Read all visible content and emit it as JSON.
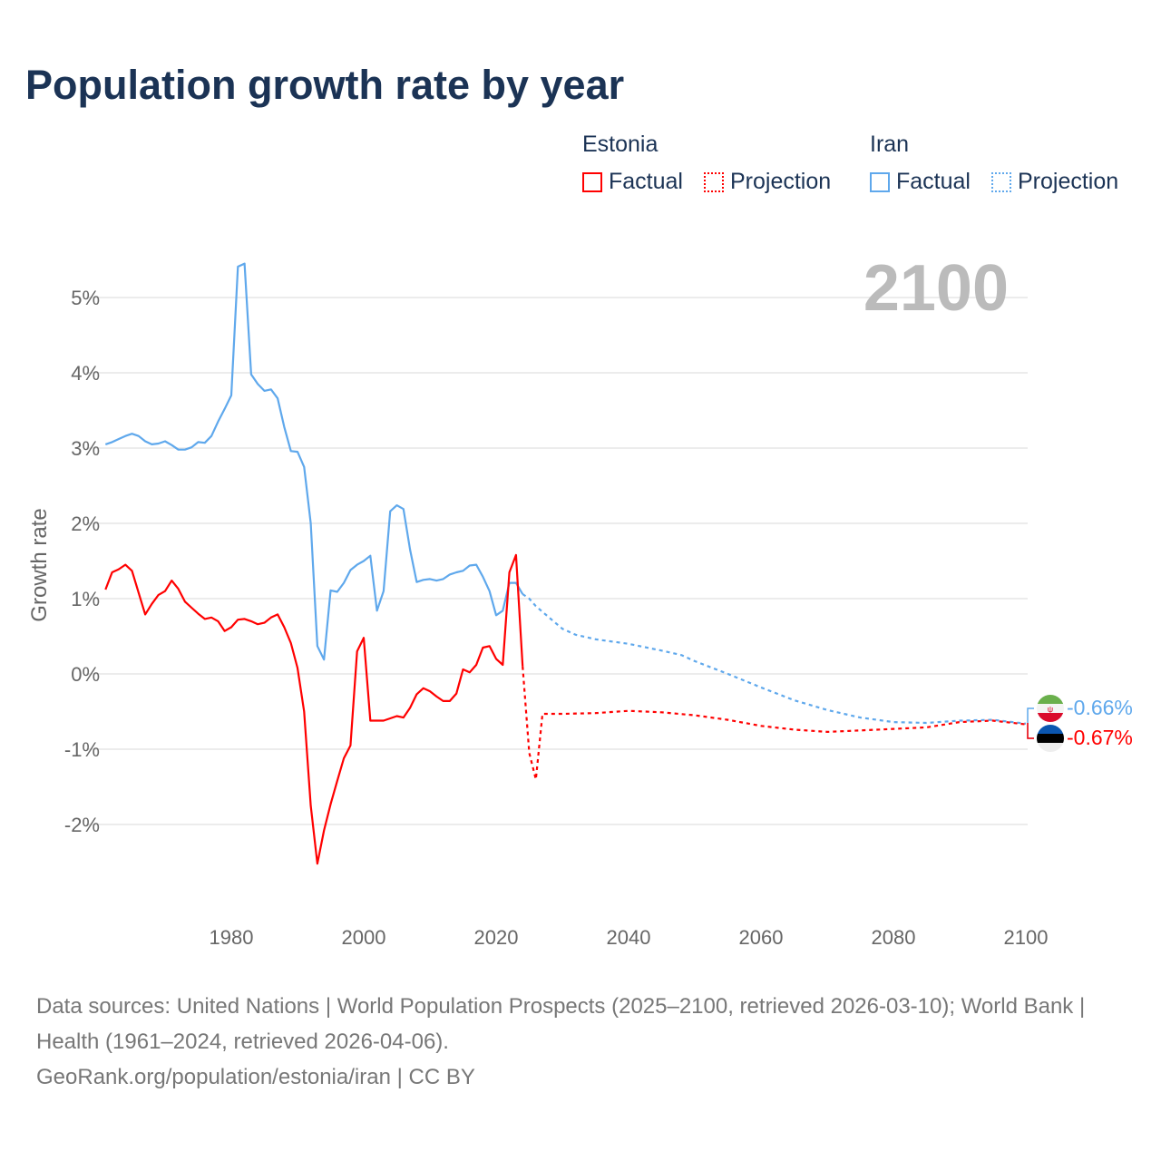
{
  "title": "Population growth rate by year",
  "legend": {
    "groups": [
      {
        "name": "Estonia",
        "factual": "Factual",
        "projection": "Projection",
        "color": "#ff0000"
      },
      {
        "name": "Iran",
        "factual": "Factual",
        "projection": "Projection",
        "color": "#5fa8ec"
      }
    ]
  },
  "year_label": "2100",
  "end_labels": {
    "iran": "-0.66%",
    "estonia": "-0.67%"
  },
  "sources": {
    "line1": "Data sources: United Nations | World Population Prospects (2025–2100, retrieved 2026-03-10); World Bank | Health (1961–2024, retrieved 2026-04-06).",
    "line2": "GeoRank.org/population/estonia/iran | CC BY"
  },
  "chart_data": {
    "type": "line",
    "title": "Population growth rate by year",
    "xlabel": "",
    "ylabel": "Growth rate",
    "xlim": [
      1961,
      2100
    ],
    "ylim": [
      -3,
      5.8
    ],
    "xticks": [
      1980,
      2000,
      2020,
      2040,
      2060,
      2080,
      2100
    ],
    "xtick_labels": [
      "1980",
      "2000",
      "2020",
      "2040",
      "2060",
      "2080",
      "2100"
    ],
    "yticks": [
      -2,
      -1,
      0,
      1,
      2,
      3,
      4,
      5
    ],
    "ytick_labels": [
      "-2%",
      "-1%",
      "0%",
      "1%",
      "2%",
      "3%",
      "4%",
      "5%"
    ],
    "grid": true,
    "legend_position": "top-right",
    "series": [
      {
        "name": "Iran Factual",
        "color": "#5fa8ec",
        "style": "solid",
        "x": [
          1961,
          1962,
          1963,
          1964,
          1965,
          1966,
          1967,
          1968,
          1969,
          1970,
          1971,
          1972,
          1973,
          1974,
          1975,
          1976,
          1977,
          1978,
          1979,
          1980,
          1981,
          1982,
          1983,
          1984,
          1985,
          1986,
          1987,
          1988,
          1989,
          1990,
          1991,
          1992,
          1993,
          1994,
          1995,
          1996,
          1997,
          1998,
          1999,
          2000,
          2001,
          2002,
          2003,
          2004,
          2005,
          2006,
          2007,
          2008,
          2009,
          2010,
          2011,
          2012,
          2013,
          2014,
          2015,
          2016,
          2017,
          2018,
          2019,
          2020,
          2021,
          2022,
          2023,
          2024
        ],
        "y": [
          3.05,
          3.08,
          3.12,
          3.16,
          3.19,
          3.16,
          3.09,
          3.05,
          3.06,
          3.09,
          3.04,
          2.98,
          2.98,
          3.01,
          3.08,
          3.07,
          3.16,
          3.35,
          3.52,
          3.7,
          5.41,
          5.45,
          3.98,
          3.85,
          3.76,
          3.78,
          3.66,
          3.28,
          2.96,
          2.95,
          2.75,
          2.0,
          0.37,
          0.19,
          1.11,
          1.09,
          1.21,
          1.38,
          1.45,
          1.5,
          1.57,
          0.84,
          1.1,
          2.16,
          2.24,
          2.19,
          1.65,
          1.22,
          1.25,
          1.26,
          1.24,
          1.26,
          1.32,
          1.35,
          1.37,
          1.44,
          1.45,
          1.29,
          1.1,
          0.78,
          0.84,
          1.21,
          1.21,
          1.06
        ]
      },
      {
        "name": "Iran Projection",
        "color": "#5fa8ec",
        "style": "dotted",
        "x": [
          2024,
          2025,
          2026,
          2028,
          2030,
          2032,
          2035,
          2040,
          2045,
          2048,
          2050,
          2055,
          2060,
          2065,
          2070,
          2075,
          2080,
          2085,
          2090,
          2095,
          2100
        ],
        "y": [
          1.06,
          1.0,
          0.9,
          0.75,
          0.6,
          0.52,
          0.46,
          0.4,
          0.31,
          0.25,
          0.17,
          0.0,
          -0.18,
          -0.35,
          -0.48,
          -0.58,
          -0.64,
          -0.65,
          -0.62,
          -0.61,
          -0.66
        ]
      },
      {
        "name": "Estonia Factual",
        "color": "#ff0000",
        "style": "solid",
        "x": [
          1961,
          1962,
          1963,
          1964,
          1965,
          1966,
          1967,
          1968,
          1969,
          1970,
          1971,
          1972,
          1973,
          1974,
          1975,
          1976,
          1977,
          1978,
          1979,
          1980,
          1981,
          1982,
          1983,
          1984,
          1985,
          1986,
          1987,
          1988,
          1989,
          1990,
          1991,
          1992,
          1993,
          1994,
          1995,
          1996,
          1997,
          1998,
          1999,
          2000,
          2001,
          2002,
          2003,
          2004,
          2005,
          2006,
          2007,
          2008,
          2009,
          2010,
          2011,
          2012,
          2013,
          2014,
          2015,
          2016,
          2017,
          2018,
          2019,
          2020,
          2021,
          2022,
          2023,
          2024
        ],
        "y": [
          1.12,
          1.35,
          1.39,
          1.45,
          1.37,
          1.08,
          0.79,
          0.93,
          1.05,
          1.1,
          1.24,
          1.13,
          0.96,
          0.88,
          0.8,
          0.73,
          0.75,
          0.7,
          0.57,
          0.62,
          0.72,
          0.73,
          0.7,
          0.66,
          0.68,
          0.75,
          0.79,
          0.62,
          0.41,
          0.08,
          -0.5,
          -1.75,
          -2.52,
          -2.08,
          -1.73,
          -1.42,
          -1.12,
          -0.95,
          0.3,
          0.48,
          -0.62,
          -0.62,
          -0.62,
          -0.59,
          -0.56,
          -0.58,
          -0.45,
          -0.27,
          -0.19,
          -0.23,
          -0.3,
          -0.36,
          -0.36,
          -0.26,
          0.06,
          0.02,
          0.12,
          0.35,
          0.37,
          0.2,
          0.12,
          1.35,
          1.58,
          0.1
        ]
      },
      {
        "name": "Estonia Projection",
        "color": "#ff0000",
        "style": "dotted",
        "x": [
          2024,
          2025,
          2026,
          2027,
          2030,
          2035,
          2040,
          2045,
          2050,
          2055,
          2060,
          2065,
          2070,
          2075,
          2080,
          2085,
          2090,
          2095,
          2100
        ],
        "y": [
          0.1,
          -1.05,
          -1.4,
          -0.53,
          -0.53,
          -0.52,
          -0.49,
          -0.51,
          -0.55,
          -0.61,
          -0.69,
          -0.74,
          -0.77,
          -0.75,
          -0.73,
          -0.71,
          -0.64,
          -0.62,
          -0.67
        ]
      }
    ]
  }
}
